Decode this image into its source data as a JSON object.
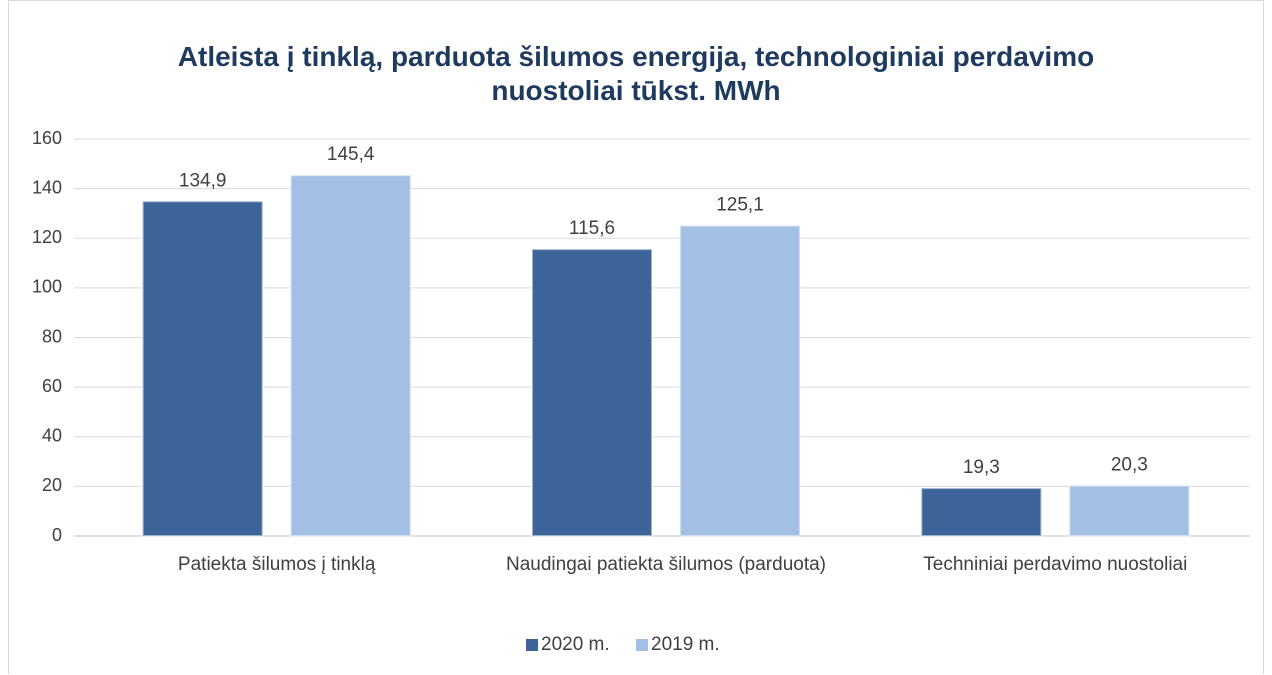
{
  "chart_data": {
    "type": "bar",
    "title": "Atleista į tinklą, parduota šilumos energija, technologiniai perdavimo nuostoliai tūkst. MWh",
    "categories": [
      "Patiekta šilumos į tinklą",
      "Naudingai patiekta šilumos (parduota)",
      "Techniniai perdavimo nuostoliai"
    ],
    "series": [
      {
        "name": "2020 m.",
        "color": "#3d6499",
        "values": [
          134.9,
          115.6,
          19.3
        ],
        "value_labels": [
          "134,9",
          "115,6",
          "19,3"
        ]
      },
      {
        "name": "2019 m.",
        "color": "#a3bfe3",
        "values": [
          145.4,
          125.1,
          20.3
        ],
        "value_labels": [
          "145,4",
          "125,1",
          "20,3"
        ]
      }
    ],
    "ylim": [
      0,
      160
    ],
    "yticks": [
      0,
      20,
      40,
      60,
      80,
      100,
      120,
      140,
      160
    ],
    "grid": true,
    "legend": "bottom"
  }
}
